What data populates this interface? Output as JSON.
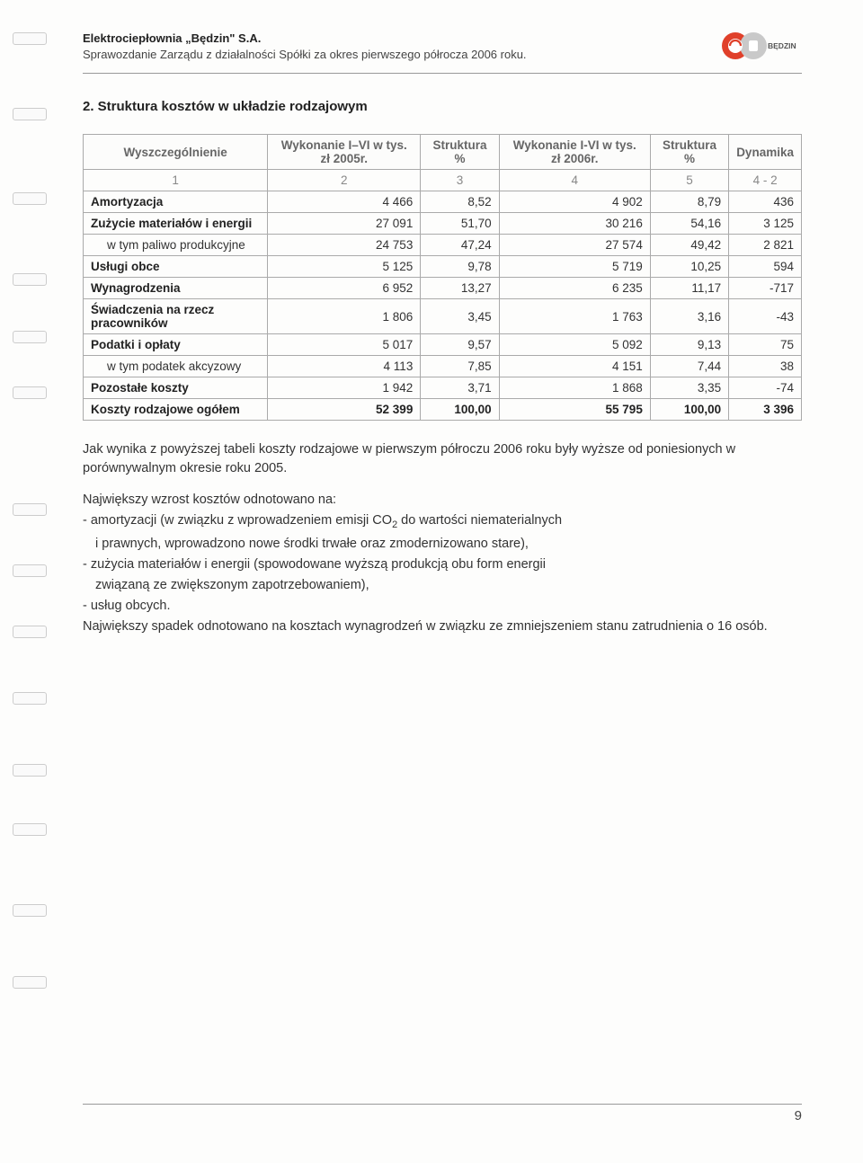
{
  "header": {
    "company": "Elektrociepłownia „Będzin\" S.A.",
    "subtitle": "Sprawozdanie Zarządu z działalności Spółki za okres pierwszego półrocza 2006 roku.",
    "logo_label": "BĘDZIN",
    "logo_colors": {
      "red": "#e0402a",
      "gray": "#bfbfbf",
      "text": "#555"
    }
  },
  "section": {
    "title": "2. Struktura kosztów w układzie rodzajowym"
  },
  "table": {
    "columns": [
      "Wyszczególnienie",
      "Wykonanie I–VI w tys. zł 2005r.",
      "Struktura %",
      "Wykonanie I-VI w tys. zł 2006r.",
      "Struktura %",
      "Dynamika"
    ],
    "numrow": [
      "1",
      "2",
      "3",
      "4",
      "5",
      "4 - 2"
    ],
    "rows": [
      {
        "label": "Amortyzacja",
        "v": [
          "4 466",
          "8,52",
          "4 902",
          "8,79",
          "436"
        ],
        "indent": false
      },
      {
        "label": "Zużycie materiałów i energii",
        "v": [
          "27 091",
          "51,70",
          "30 216",
          "54,16",
          "3 125"
        ],
        "indent": false
      },
      {
        "label": "w tym paliwo produkcyjne",
        "v": [
          "24 753",
          "47,24",
          "27 574",
          "49,42",
          "2 821"
        ],
        "indent": true
      },
      {
        "label": "Usługi obce",
        "v": [
          "5 125",
          "9,78",
          "5 719",
          "10,25",
          "594"
        ],
        "indent": false
      },
      {
        "label": "Wynagrodzenia",
        "v": [
          "6 952",
          "13,27",
          "6 235",
          "11,17",
          "-717"
        ],
        "indent": false
      },
      {
        "label": "Świadczenia na rzecz pracowników",
        "v": [
          "1 806",
          "3,45",
          "1 763",
          "3,16",
          "-43"
        ],
        "indent": false
      },
      {
        "label": "Podatki i opłaty",
        "v": [
          "5 017",
          "9,57",
          "5 092",
          "9,13",
          "75"
        ],
        "indent": false
      },
      {
        "label": "w tym podatek akcyzowy",
        "v": [
          "4 113",
          "7,85",
          "4 151",
          "7,44",
          "38"
        ],
        "indent": true
      },
      {
        "label": "Pozostałe koszty",
        "v": [
          "1 942",
          "3,71",
          "1 868",
          "3,35",
          "-74"
        ],
        "indent": false
      }
    ],
    "total": {
      "label": "Koszty rodzajowe ogółem",
      "v": [
        "52 399",
        "100,00",
        "55 795",
        "100,00",
        "3 396"
      ]
    }
  },
  "paragraphs": {
    "p1": "Jak wynika z powyższej tabeli koszty rodzajowe w pierwszym półroczu 2006 roku były wyższe od poniesionych w porównywalnym okresie roku 2005.",
    "p2": "Największy wzrost kosztów odnotowano na:",
    "b1a": "- amortyzacji (w związku z wprowadzeniem emisji CO",
    "b1b": " do wartości niematerialnych",
    "b1sub": "i prawnych, wprowadzono nowe środki trwałe oraz zmodernizowano stare),",
    "b2": "- zużycia materiałów  i energii (spowodowane wyższą produkcją obu form energii",
    "b2sub": "związaną ze zwiększonym zapotrzebowaniem),",
    "b3": "- usług obcych.",
    "p3": "Największy spadek odnotowano na kosztach wynagrodzeń w związku ze zmniejszeniem stanu zatrudnienia o 16 osób."
  },
  "footer": {
    "page_number": "9"
  },
  "punch_positions": [
    36,
    120,
    214,
    304,
    368,
    430,
    560,
    628,
    696,
    770,
    850,
    916,
    1006,
    1086
  ]
}
